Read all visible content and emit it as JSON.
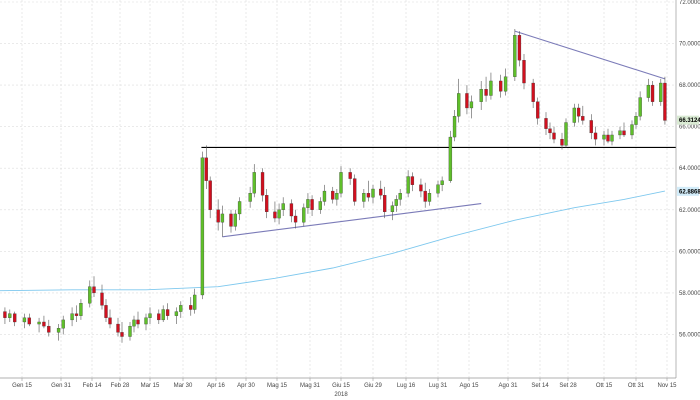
{
  "chart_data": {
    "type": "candlestick",
    "title": "",
    "xlabel": "",
    "ylabel": "",
    "ylim": [
      54.0,
      72.0
    ],
    "y_ticks": [
      "56.0000",
      "58.0000",
      "60.0000",
      "62.0000",
      "64.0000",
      "66.0000",
      "68.0000",
      "70.0000",
      "72.0000"
    ],
    "x_ticks": [
      "Gen 15",
      "Gen 31",
      "Feb 14",
      "Feb 28",
      "Mar 15",
      "Mar 30",
      "Apr 16",
      "Apr 30",
      "Mag 15",
      "Mag 31",
      "Giu 15",
      "Giu 29",
      "Lug 16",
      "Lug 31",
      "Ago 15",
      "Ago 31",
      "Set 14",
      "Set 28",
      "Ott 15",
      "Ott 31",
      "Nov 15"
    ],
    "year_label": "2018",
    "last_price": "66.3124",
    "ma_value": "62.8868",
    "colors": {
      "up": "#5fbf2a",
      "down": "#d0101f",
      "ma": "#7ec8ee",
      "trendline": "#7b7bb8",
      "level": "#000000",
      "grid": "#dddddd"
    },
    "grid": true,
    "candles": [
      {
        "date": "Gen 02",
        "open": 57.5,
        "high": 58.1,
        "low": 57.1,
        "close": 57.7
      },
      {
        "date": "Gen 04",
        "open": 57.7,
        "high": 57.9,
        "low": 56.9,
        "close": 57.1
      },
      {
        "date": "Gen 08",
        "open": 57.1,
        "high": 57.3,
        "low": 56.5,
        "close": 56.8
      },
      {
        "date": "Gen 10",
        "open": 56.8,
        "high": 57.2,
        "low": 56.6,
        "close": 57.0
      },
      {
        "date": "Gen 12",
        "open": 57.0,
        "high": 57.1,
        "low": 56.4,
        "close": 56.6
      },
      {
        "date": "Gen 16",
        "open": 56.6,
        "high": 57.0,
        "low": 56.3,
        "close": 56.8
      },
      {
        "date": "Gen 18",
        "open": 56.8,
        "high": 57.0,
        "low": 56.4,
        "close": 56.5
      },
      {
        "date": "Gen 22",
        "open": 56.5,
        "high": 56.8,
        "low": 56.1,
        "close": 56.6
      },
      {
        "date": "Gen 24",
        "open": 56.6,
        "high": 56.9,
        "low": 56.3,
        "close": 56.4
      },
      {
        "date": "Gen 26",
        "open": 56.4,
        "high": 56.7,
        "low": 55.9,
        "close": 56.1
      },
      {
        "date": "Gen 30",
        "open": 56.1,
        "high": 56.5,
        "low": 55.7,
        "close": 56.3
      },
      {
        "date": "Feb 01",
        "open": 56.3,
        "high": 56.9,
        "low": 56.0,
        "close": 56.7
      },
      {
        "date": "Feb 05",
        "open": 56.7,
        "high": 57.3,
        "low": 56.4,
        "close": 57.0
      },
      {
        "date": "Feb 07",
        "open": 57.0,
        "high": 57.4,
        "low": 56.6,
        "close": 56.9
      },
      {
        "date": "Feb 09",
        "open": 56.9,
        "high": 57.7,
        "low": 56.7,
        "close": 57.5
      },
      {
        "date": "Feb 13",
        "open": 57.5,
        "high": 58.6,
        "low": 57.3,
        "close": 58.3
      },
      {
        "date": "Feb 15",
        "open": 58.3,
        "high": 58.8,
        "low": 57.8,
        "close": 58.0
      },
      {
        "date": "Feb 19",
        "open": 58.0,
        "high": 58.4,
        "low": 57.2,
        "close": 57.4
      },
      {
        "date": "Feb 21",
        "open": 57.4,
        "high": 57.7,
        "low": 56.6,
        "close": 56.8
      },
      {
        "date": "Feb 23",
        "open": 56.8,
        "high": 57.2,
        "low": 56.3,
        "close": 56.5
      },
      {
        "date": "Feb 27",
        "open": 56.5,
        "high": 56.8,
        "low": 55.9,
        "close": 56.1
      },
      {
        "date": "Mar 01",
        "open": 56.1,
        "high": 56.6,
        "low": 55.6,
        "close": 55.9
      },
      {
        "date": "Mar 05",
        "open": 55.9,
        "high": 56.6,
        "low": 55.7,
        "close": 56.4
      },
      {
        "date": "Mar 07",
        "open": 56.4,
        "high": 56.9,
        "low": 56.1,
        "close": 56.7
      },
      {
        "date": "Mar 09",
        "open": 56.7,
        "high": 57.1,
        "low": 56.3,
        "close": 56.5
      },
      {
        "date": "Mar 13",
        "open": 56.5,
        "high": 57.0,
        "low": 56.2,
        "close": 56.8
      },
      {
        "date": "Mar 15",
        "open": 56.8,
        "high": 57.3,
        "low": 56.5,
        "close": 57.0
      },
      {
        "date": "Mar 19",
        "open": 57.0,
        "high": 57.2,
        "low": 56.5,
        "close": 56.7
      },
      {
        "date": "Mar 21",
        "open": 56.7,
        "high": 57.4,
        "low": 56.6,
        "close": 57.2
      },
      {
        "date": "Mar 23",
        "open": 57.2,
        "high": 57.5,
        "low": 56.7,
        "close": 56.9
      },
      {
        "date": "Mar 27",
        "open": 56.9,
        "high": 57.3,
        "low": 56.5,
        "close": 57.1
      },
      {
        "date": "Mar 29",
        "open": 57.1,
        "high": 57.6,
        "low": 56.8,
        "close": 57.4
      },
      {
        "date": "Apr 03",
        "open": 57.4,
        "high": 57.8,
        "low": 56.9,
        "close": 57.2
      },
      {
        "date": "Apr 05",
        "open": 57.2,
        "high": 58.2,
        "low": 57.0,
        "close": 57.9
      },
      {
        "date": "Apr 09",
        "open": 57.9,
        "high": 64.8,
        "low": 57.7,
        "close": 64.5
      },
      {
        "date": "Apr 11",
        "open": 64.5,
        "high": 65.1,
        "low": 63.0,
        "close": 63.4
      },
      {
        "date": "Apr 13",
        "open": 63.4,
        "high": 63.6,
        "low": 61.6,
        "close": 62.0
      },
      {
        "date": "Apr 17",
        "open": 62.0,
        "high": 62.5,
        "low": 61.0,
        "close": 61.4
      },
      {
        "date": "Apr 19",
        "open": 61.4,
        "high": 62.2,
        "low": 60.7,
        "close": 61.8
      },
      {
        "date": "Apr 23",
        "open": 61.8,
        "high": 62.0,
        "low": 60.9,
        "close": 61.2
      },
      {
        "date": "Apr 25",
        "open": 61.2,
        "high": 62.0,
        "low": 61.0,
        "close": 61.8
      },
      {
        "date": "Apr 27",
        "open": 61.8,
        "high": 62.6,
        "low": 61.5,
        "close": 62.4
      },
      {
        "date": "Mag 02",
        "open": 62.4,
        "high": 63.1,
        "low": 62.1,
        "close": 62.8
      },
      {
        "date": "Mag 04",
        "open": 62.8,
        "high": 64.2,
        "low": 62.6,
        "close": 63.8
      },
      {
        "date": "Mag 08",
        "open": 63.8,
        "high": 64.0,
        "low": 62.4,
        "close": 62.7
      },
      {
        "date": "Mag 10",
        "open": 62.7,
        "high": 63.0,
        "low": 61.6,
        "close": 61.9
      },
      {
        "date": "Mag 14",
        "open": 61.9,
        "high": 62.4,
        "low": 61.4,
        "close": 61.6
      },
      {
        "date": "Mag 16",
        "open": 61.6,
        "high": 62.3,
        "low": 61.3,
        "close": 62.0
      },
      {
        "date": "Mag 18",
        "open": 62.0,
        "high": 62.6,
        "low": 61.7,
        "close": 62.3
      },
      {
        "date": "Mag 22",
        "open": 62.3,
        "high": 62.5,
        "low": 61.4,
        "close": 61.7
      },
      {
        "date": "Mag 24",
        "open": 61.7,
        "high": 62.0,
        "low": 61.1,
        "close": 61.4
      },
      {
        "date": "Mag 28",
        "open": 61.4,
        "high": 62.3,
        "low": 61.2,
        "close": 62.1
      },
      {
        "date": "Mag 30",
        "open": 62.1,
        "high": 62.8,
        "low": 61.8,
        "close": 62.5
      },
      {
        "date": "Giu 01",
        "open": 62.5,
        "high": 62.7,
        "low": 61.7,
        "close": 62.0
      },
      {
        "date": "Giu 05",
        "open": 62.0,
        "high": 62.6,
        "low": 61.8,
        "close": 62.4
      },
      {
        "date": "Giu 07",
        "open": 62.4,
        "high": 63.2,
        "low": 62.2,
        "close": 62.9
      },
      {
        "date": "Giu 11",
        "open": 62.9,
        "high": 63.1,
        "low": 62.3,
        "close": 62.5
      },
      {
        "date": "Giu 13",
        "open": 62.5,
        "high": 63.0,
        "low": 62.2,
        "close": 62.8
      },
      {
        "date": "Giu 15",
        "open": 62.8,
        "high": 64.1,
        "low": 62.6,
        "close": 63.8
      },
      {
        "date": "Giu 19",
        "open": 63.8,
        "high": 64.0,
        "low": 63.2,
        "close": 63.5
      },
      {
        "date": "Giu 21",
        "open": 63.5,
        "high": 63.7,
        "low": 62.2,
        "close": 62.4
      },
      {
        "date": "Giu 25",
        "open": 62.4,
        "high": 63.0,
        "low": 62.1,
        "close": 62.8
      },
      {
        "date": "Giu 27",
        "open": 62.8,
        "high": 63.4,
        "low": 62.4,
        "close": 62.6
      },
      {
        "date": "Giu 29",
        "open": 62.6,
        "high": 63.2,
        "low": 62.3,
        "close": 63.0
      },
      {
        "date": "Lug 03",
        "open": 63.0,
        "high": 63.4,
        "low": 62.5,
        "close": 62.7
      },
      {
        "date": "Lug 05",
        "open": 62.7,
        "high": 63.1,
        "low": 61.6,
        "close": 61.9
      },
      {
        "date": "Lug 09",
        "open": 61.9,
        "high": 62.4,
        "low": 61.5,
        "close": 62.2
      },
      {
        "date": "Lug 11",
        "open": 62.2,
        "high": 62.7,
        "low": 61.9,
        "close": 62.5
      },
      {
        "date": "Lug 13",
        "open": 62.5,
        "high": 63.0,
        "low": 62.2,
        "close": 62.8
      },
      {
        "date": "Lug 17",
        "open": 62.8,
        "high": 63.9,
        "low": 62.6,
        "close": 63.6
      },
      {
        "date": "Lug 19",
        "open": 63.6,
        "high": 63.8,
        "low": 62.9,
        "close": 63.2
      },
      {
        "date": "Lug 23",
        "open": 63.2,
        "high": 63.5,
        "low": 62.6,
        "close": 62.9
      },
      {
        "date": "Lug 25",
        "open": 62.9,
        "high": 63.3,
        "low": 62.1,
        "close": 62.4
      },
      {
        "date": "Lug 27",
        "open": 62.4,
        "high": 63.0,
        "low": 62.2,
        "close": 62.8
      },
      {
        "date": "Lug 31",
        "open": 62.8,
        "high": 63.4,
        "low": 62.6,
        "close": 63.2
      },
      {
        "date": "Ago 02",
        "open": 63.2,
        "high": 63.6,
        "low": 62.9,
        "close": 63.4
      },
      {
        "date": "Ago 06",
        "open": 63.4,
        "high": 65.8,
        "low": 63.3,
        "close": 65.5
      },
      {
        "date": "Ago 08",
        "open": 65.5,
        "high": 66.8,
        "low": 65.3,
        "close": 66.5
      },
      {
        "date": "Ago 10",
        "open": 66.5,
        "high": 68.3,
        "low": 66.2,
        "close": 67.6
      },
      {
        "date": "Ago 14",
        "open": 67.6,
        "high": 68.0,
        "low": 66.6,
        "close": 66.9
      },
      {
        "date": "Ago 16",
        "open": 66.9,
        "high": 67.5,
        "low": 66.4,
        "close": 67.2
      },
      {
        "date": "Ago 20",
        "open": 67.2,
        "high": 68.2,
        "low": 66.8,
        "close": 67.8
      },
      {
        "date": "Ago 22",
        "open": 67.8,
        "high": 68.4,
        "low": 67.2,
        "close": 67.5
      },
      {
        "date": "Ago 24",
        "open": 67.5,
        "high": 68.6,
        "low": 67.3,
        "close": 68.2
      },
      {
        "date": "Ago 28",
        "open": 68.2,
        "high": 68.5,
        "low": 67.4,
        "close": 67.7
      },
      {
        "date": "Ago 30",
        "open": 67.7,
        "high": 68.8,
        "low": 67.5,
        "close": 68.4
      },
      {
        "date": "Set 03",
        "open": 68.4,
        "high": 70.7,
        "low": 68.2,
        "close": 70.4
      },
      {
        "date": "Set 05",
        "open": 70.4,
        "high": 70.6,
        "low": 68.9,
        "close": 69.2
      },
      {
        "date": "Set 07",
        "open": 69.2,
        "high": 69.5,
        "low": 67.8,
        "close": 68.1
      },
      {
        "date": "Set 11",
        "open": 68.1,
        "high": 68.3,
        "low": 66.9,
        "close": 67.2
      },
      {
        "date": "Set 13",
        "open": 67.2,
        "high": 67.4,
        "low": 66.1,
        "close": 66.4
      },
      {
        "date": "Set 17",
        "open": 66.4,
        "high": 66.7,
        "low": 65.6,
        "close": 65.9
      },
      {
        "date": "Set 19",
        "open": 65.9,
        "high": 66.2,
        "low": 65.4,
        "close": 65.7
      },
      {
        "date": "Set 21",
        "open": 65.7,
        "high": 66.0,
        "low": 65.2,
        "close": 65.4
      },
      {
        "date": "Set 25",
        "open": 65.4,
        "high": 65.7,
        "low": 64.9,
        "close": 65.1
      },
      {
        "date": "Set 27",
        "open": 65.1,
        "high": 66.4,
        "low": 65.0,
        "close": 66.2
      },
      {
        "date": "Ott 01",
        "open": 66.2,
        "high": 67.1,
        "low": 66.0,
        "close": 66.9
      },
      {
        "date": "Ott 03",
        "open": 66.9,
        "high": 67.1,
        "low": 66.2,
        "close": 66.5
      },
      {
        "date": "Ott 05",
        "open": 66.5,
        "high": 67.0,
        "low": 66.1,
        "close": 66.3
      },
      {
        "date": "Ott 09",
        "open": 66.3,
        "high": 66.6,
        "low": 65.4,
        "close": 65.7
      },
      {
        "date": "Ott 11",
        "open": 65.7,
        "high": 66.0,
        "low": 65.1,
        "close": 65.4
      },
      {
        "date": "Ott 15",
        "open": 65.4,
        "high": 65.8,
        "low": 65.1,
        "close": 65.6
      },
      {
        "date": "Ott 17",
        "open": 65.6,
        "high": 65.9,
        "low": 65.2,
        "close": 65.3
      },
      {
        "date": "Ott 19",
        "open": 65.3,
        "high": 65.8,
        "low": 65.1,
        "close": 65.6
      },
      {
        "date": "Ott 23",
        "open": 65.6,
        "high": 66.0,
        "low": 65.4,
        "close": 65.8
      },
      {
        "date": "Ott 25",
        "open": 65.8,
        "high": 66.2,
        "low": 65.5,
        "close": 65.6
      },
      {
        "date": "Ott 29",
        "open": 65.6,
        "high": 66.3,
        "low": 65.4,
        "close": 66.1
      },
      {
        "date": "Ott 31",
        "open": 66.1,
        "high": 66.7,
        "low": 65.9,
        "close": 66.5
      },
      {
        "date": "Nov 02",
        "open": 66.5,
        "high": 67.7,
        "low": 66.3,
        "close": 67.4
      },
      {
        "date": "Nov 06",
        "open": 67.4,
        "high": 68.3,
        "low": 67.2,
        "close": 68.0
      },
      {
        "date": "Nov 08",
        "open": 68.0,
        "high": 68.2,
        "low": 67.0,
        "close": 67.2
      },
      {
        "date": "Nov 12",
        "open": 67.2,
        "high": 68.3,
        "low": 67.0,
        "close": 68.1
      },
      {
        "date": "Nov 14",
        "open": 68.1,
        "high": 68.4,
        "low": 66.1,
        "close": 66.3
      }
    ],
    "moving_average": [
      {
        "date": "Gen 02",
        "value": 58.1
      },
      {
        "date": "Feb 05",
        "value": 58.15
      },
      {
        "date": "Mar 13",
        "value": 58.15
      },
      {
        "date": "Apr 17",
        "value": 58.3
      },
      {
        "date": "Mag 14",
        "value": 58.7
      },
      {
        "date": "Giu 11",
        "value": 59.2
      },
      {
        "date": "Lug 09",
        "value": 59.9
      },
      {
        "date": "Ago 06",
        "value": 60.7
      },
      {
        "date": "Set 03",
        "value": 61.5
      },
      {
        "date": "Ott 01",
        "value": 62.1
      },
      {
        "date": "Ott 25",
        "value": 62.5
      },
      {
        "date": "Nov 14",
        "value": 62.9
      }
    ],
    "horizontal_level": 65.0,
    "trendlines": [
      {
        "from": {
          "date": "Apr 19",
          "value": 60.7
        },
        "to": {
          "date": "Ago 20",
          "value": 62.3
        }
      },
      {
        "from": {
          "date": "Set 03",
          "value": 70.6
        },
        "to": {
          "date": "Nov 14",
          "value": 68.3
        }
      }
    ]
  }
}
